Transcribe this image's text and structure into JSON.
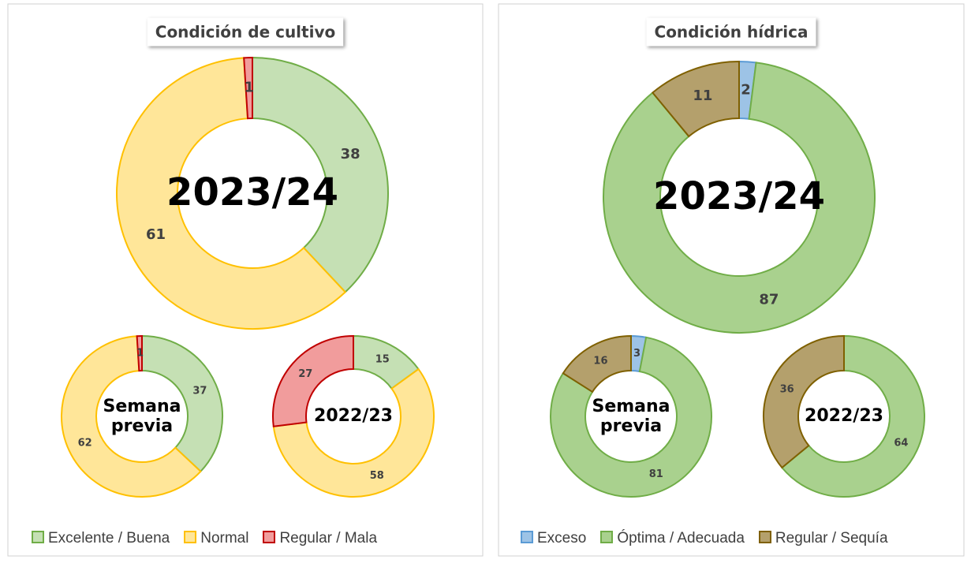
{
  "chart_data": [
    {
      "type": "donut",
      "title": "Condición de cultivo",
      "categories": [
        "2023/24",
        "Semana previa",
        "2022/23"
      ],
      "series": [
        {
          "name": "Excelente / Buena",
          "color": "#c5e0b4",
          "edgecolor": "#70ad47",
          "values": [
            38,
            37,
            15
          ]
        },
        {
          "name": "Normal",
          "color": "#ffe699",
          "edgecolor": "#ffc000",
          "values": [
            61,
            62,
            58
          ]
        },
        {
          "name": "Regular / Mala",
          "color": "#f19c9c",
          "edgecolor": "#c00000",
          "values": [
            1,
            1,
            27
          ]
        }
      ]
    },
    {
      "type": "donut",
      "title": "Condición hídrica",
      "categories": [
        "2023/24",
        "Semana previa",
        "2022/23"
      ],
      "series": [
        {
          "name": "Exceso",
          "color": "#9dc3e6",
          "edgecolor": "#5b9bd5",
          "values": [
            2,
            3,
            0
          ]
        },
        {
          "name": "Óptima / Adecuada",
          "color": "#a9d18e",
          "edgecolor": "#70ad47",
          "values": [
            87,
            81,
            64
          ]
        },
        {
          "name": "Regular / Sequía",
          "color": "#b4a06c",
          "edgecolor": "#7f6000",
          "values": [
            11,
            16,
            36
          ]
        }
      ]
    }
  ]
}
